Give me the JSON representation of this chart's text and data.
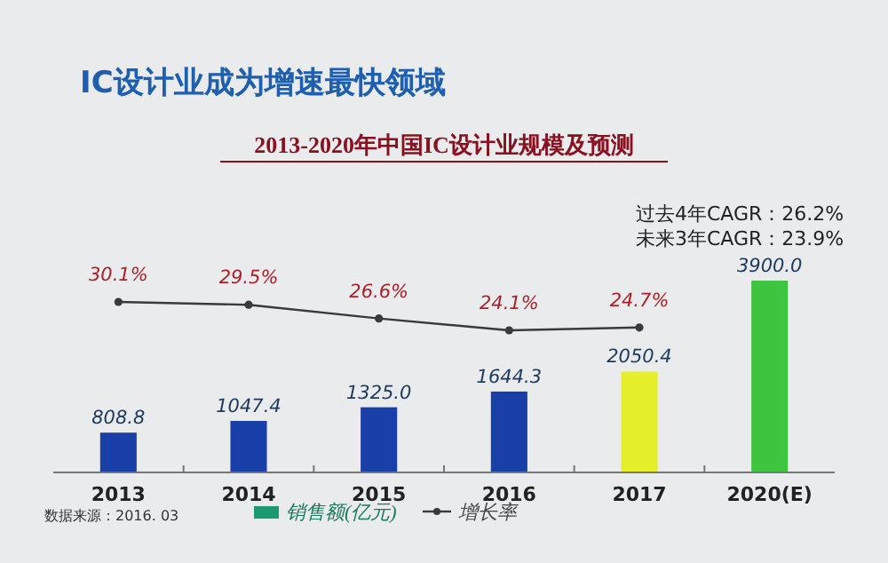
{
  "chart_data": {
    "type": "bar",
    "title": "IC设计业成为增速最快领域",
    "subtitle": "2013-2020年中国IC设计业规模及预测",
    "categories": [
      "2013",
      "2014",
      "2015",
      "2016",
      "2017",
      "2020(E)"
    ],
    "series": [
      {
        "name": "销售额(亿元)",
        "color": "#1a9a6e",
        "colors": [
          "#1a3fa8",
          "#1a3fa8",
          "#1a3fa8",
          "#1a3fa8",
          "#e6f02a",
          "#3ec43e"
        ],
        "values": [
          808.8,
          1047.4,
          1325.0,
          1644.3,
          2050.4,
          3900.0
        ],
        "value_labels": [
          "808.8",
          "1047.4",
          "1325.0",
          "1644.3",
          "2050.4",
          "3900.0"
        ]
      },
      {
        "name": "增长率",
        "type": "line",
        "axis": "y2",
        "color": "#3a3a3a",
        "marker": "circle",
        "values": [
          30.1,
          29.5,
          26.6,
          24.1,
          24.7,
          null
        ],
        "value_labels": [
          "30.1%",
          "29.5%",
          "26.6%",
          "24.1%",
          "24.7%",
          null
        ]
      }
    ],
    "legend": "bottom",
    "annotations": [
      "过去4年CAGR：26.2%",
      "未来3年CAGR：23.9%",
      "数据来源：2016. 03"
    ]
  }
}
